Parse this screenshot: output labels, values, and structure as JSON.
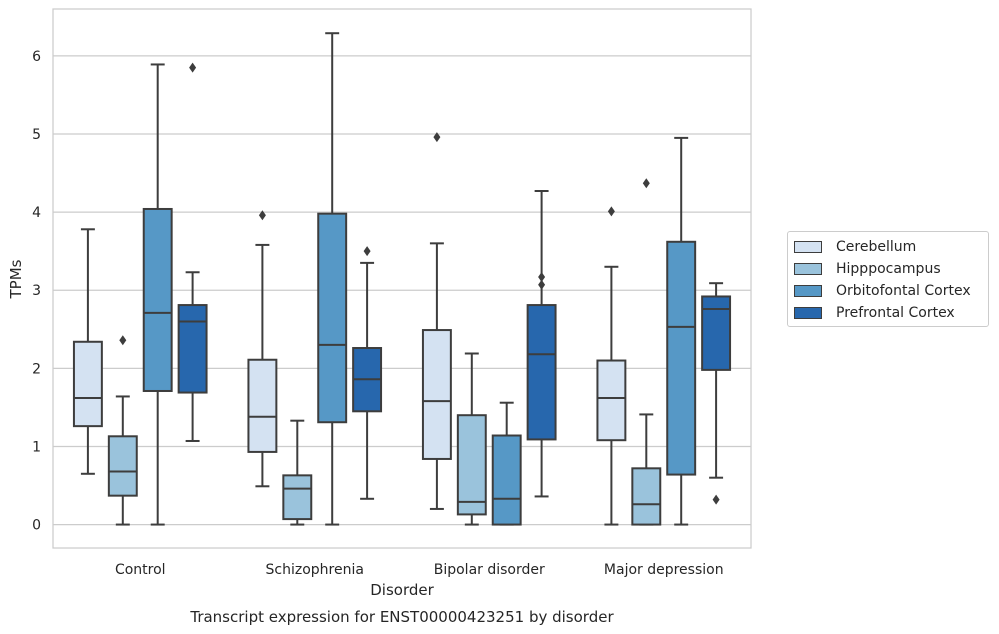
{
  "chart_data": {
    "type": "box",
    "title": "Transcript expression for ENST00000423251 by disorder",
    "xlabel": "Disorder",
    "ylabel": "TPMs",
    "ylim": [
      -0.3,
      6.6
    ],
    "yticks": [
      "0",
      "1",
      "2",
      "3",
      "4",
      "5",
      "6"
    ],
    "grid": true,
    "legend_position": "center-right",
    "categories": [
      "Control",
      "Schizophrenia",
      "Bipolar disorder",
      "Major depression"
    ],
    "series": [
      {
        "name": "Cerebellum",
        "color": "#d4e2f2",
        "boxes": [
          {
            "whisker_low": 0.65,
            "q1": 1.26,
            "median": 1.62,
            "q3": 2.34,
            "whisker_high": 3.78,
            "outliers": []
          },
          {
            "whisker_low": 0.49,
            "q1": 0.93,
            "median": 1.38,
            "q3": 2.11,
            "whisker_high": 3.58,
            "outliers": [
              3.96
            ]
          },
          {
            "whisker_low": 0.2,
            "q1": 0.84,
            "median": 1.58,
            "q3": 2.49,
            "whisker_high": 3.6,
            "outliers": [
              4.96
            ]
          },
          {
            "whisker_low": 0.0,
            "q1": 1.08,
            "median": 1.62,
            "q3": 2.1,
            "whisker_high": 3.3,
            "outliers": [
              4.01
            ]
          }
        ]
      },
      {
        "name": "Hipppocampus",
        "color": "#9ac3dc",
        "boxes": [
          {
            "whisker_low": 0.0,
            "q1": 0.37,
            "median": 0.68,
            "q3": 1.13,
            "whisker_high": 1.64,
            "outliers": [
              2.36
            ]
          },
          {
            "whisker_low": 0.0,
            "q1": 0.07,
            "median": 0.46,
            "q3": 0.63,
            "whisker_high": 1.33,
            "outliers": []
          },
          {
            "whisker_low": 0.0,
            "q1": 0.13,
            "median": 0.29,
            "q3": 1.4,
            "whisker_high": 2.19,
            "outliers": []
          },
          {
            "whisker_low": 0.0,
            "q1": 0.0,
            "median": 0.26,
            "q3": 0.72,
            "whisker_high": 1.41,
            "outliers": [
              4.37
            ]
          }
        ]
      },
      {
        "name": "Orbitofontal Cortex",
        "color": "#5698c6",
        "boxes": [
          {
            "whisker_low": 0.0,
            "q1": 1.71,
            "median": 2.71,
            "q3": 4.04,
            "whisker_high": 5.89,
            "outliers": []
          },
          {
            "whisker_low": 0.0,
            "q1": 1.31,
            "median": 2.3,
            "q3": 3.98,
            "whisker_high": 6.29,
            "outliers": []
          },
          {
            "whisker_low": 0.0,
            "q1": 0.0,
            "median": 0.33,
            "q3": 1.14,
            "whisker_high": 1.56,
            "outliers": []
          },
          {
            "whisker_low": 0.0,
            "q1": 0.64,
            "median": 2.53,
            "q3": 3.62,
            "whisker_high": 4.95,
            "outliers": []
          }
        ]
      },
      {
        "name": "Prefrontal Cortex",
        "color": "#2767ad",
        "boxes": [
          {
            "whisker_low": 1.07,
            "q1": 1.69,
            "median": 2.6,
            "q3": 2.81,
            "whisker_high": 3.23,
            "outliers": [
              5.85
            ]
          },
          {
            "whisker_low": 0.33,
            "q1": 1.45,
            "median": 1.86,
            "q3": 2.26,
            "whisker_high": 3.35,
            "outliers": [
              3.5
            ]
          },
          {
            "whisker_low": 0.36,
            "q1": 1.09,
            "median": 2.18,
            "q3": 2.81,
            "whisker_high": 4.27,
            "outliers": [
              3.07,
              3.17
            ]
          },
          {
            "whisker_low": 0.6,
            "q1": 1.98,
            "median": 2.76,
            "q3": 2.92,
            "whisker_high": 3.09,
            "outliers": [
              0.32
            ]
          }
        ]
      }
    ]
  }
}
